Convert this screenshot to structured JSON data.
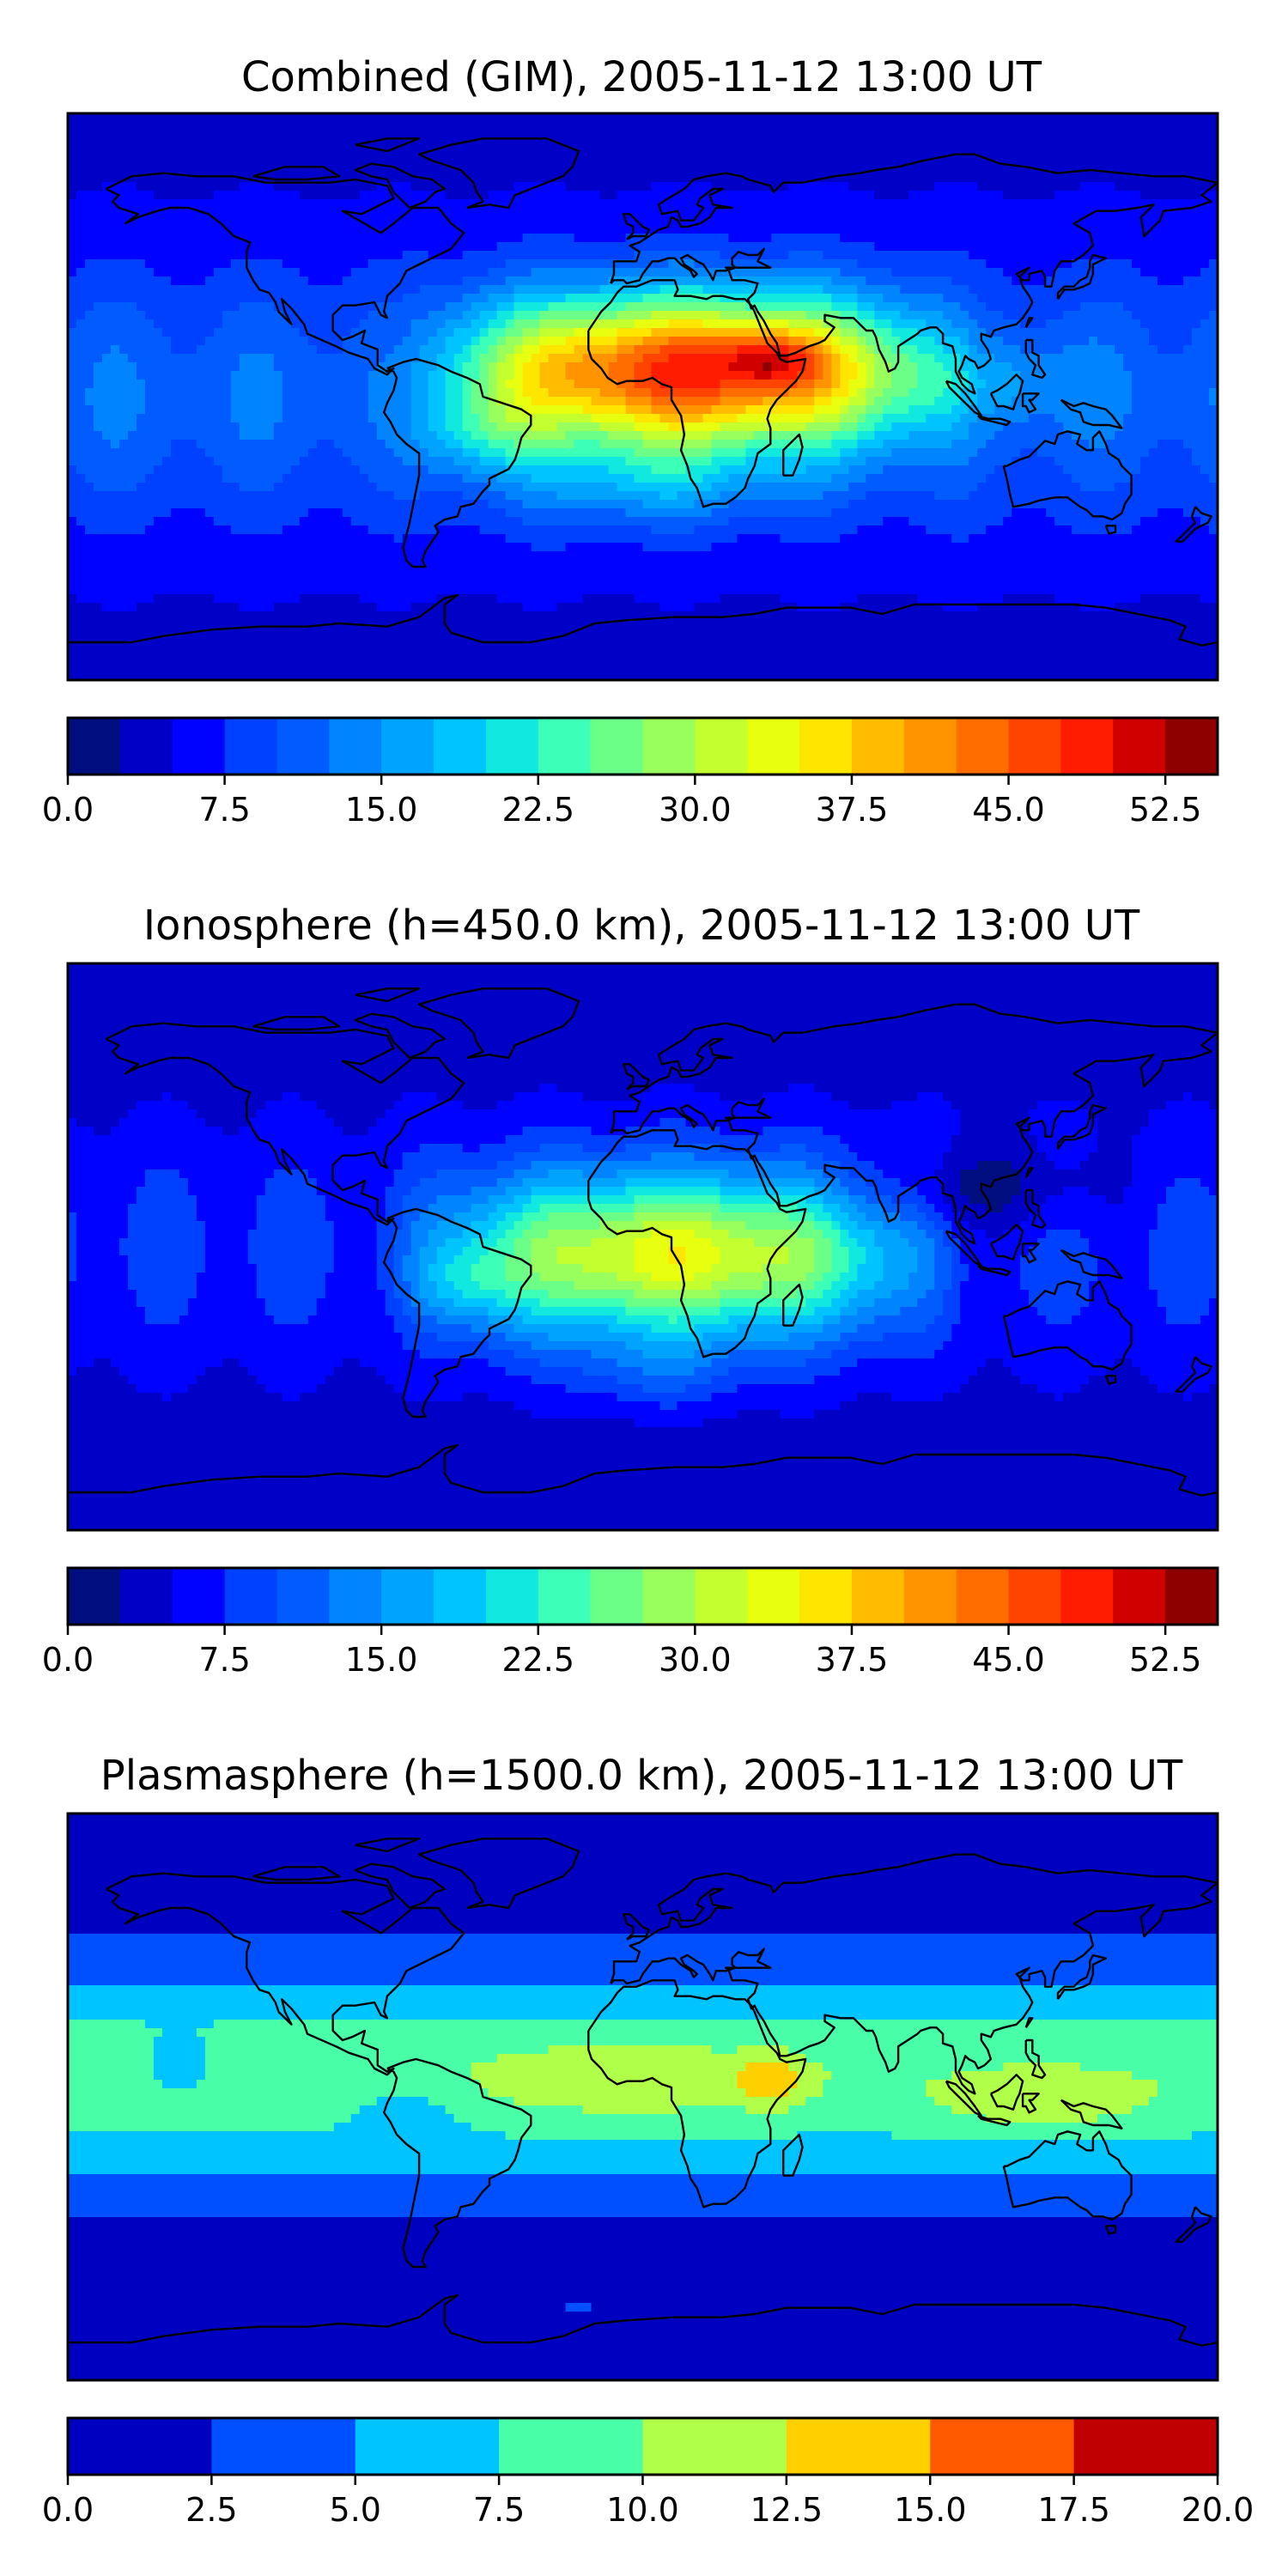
{
  "chart_data": [
    {
      "type": "heatmap",
      "title": "Combined (GIM), 2005-11-12 13:00 UT",
      "field": "combined",
      "colorbar": {
        "levels": [
          0,
          2.5,
          5,
          7.5,
          10,
          12.5,
          15,
          17.5,
          20,
          22.5,
          25,
          27.5,
          30,
          32.5,
          35,
          37.5,
          40,
          42.5,
          45,
          47.5,
          50,
          52.5,
          55
        ],
        "ticks": [
          "0.0",
          "7.5",
          "15.0",
          "22.5",
          "30.0",
          "37.5",
          "45.0",
          "52.5"
        ],
        "tick_values": [
          0,
          7.5,
          15,
          22.5,
          30,
          37.5,
          45,
          52.5
        ],
        "colors": [
          "#000e80",
          "#0000c6",
          "#0002ff",
          "#0040ff",
          "#005cff",
          "#0084ff",
          "#00a4ff",
          "#00c4ff",
          "#10e8e0",
          "#3cffb8",
          "#6cff88",
          "#98ff5c",
          "#c4ff30",
          "#e8ff10",
          "#ffe600",
          "#ffbc00",
          "#ff9400",
          "#ff6c00",
          "#ff4400",
          "#ff1c00",
          "#d00000",
          "#8e0000"
        ]
      }
    },
    {
      "type": "heatmap",
      "title": "Ionosphere  (h=450.0 km), 2005-11-12 13:00 UT",
      "field": "ionosphere",
      "colorbar": {
        "levels": [
          0,
          2.5,
          5,
          7.5,
          10,
          12.5,
          15,
          17.5,
          20,
          22.5,
          25,
          27.5,
          30,
          32.5,
          35,
          37.5,
          40,
          42.5,
          45,
          47.5,
          50,
          52.5,
          55
        ],
        "ticks": [
          "0.0",
          "7.5",
          "15.0",
          "22.5",
          "30.0",
          "37.5",
          "45.0",
          "52.5"
        ],
        "tick_values": [
          0,
          7.5,
          15,
          22.5,
          30,
          37.5,
          45,
          52.5
        ],
        "colors": [
          "#000e80",
          "#0000c6",
          "#0002ff",
          "#0040ff",
          "#005cff",
          "#0084ff",
          "#00a4ff",
          "#00c4ff",
          "#10e8e0",
          "#3cffb8",
          "#6cff88",
          "#98ff5c",
          "#c4ff30",
          "#e8ff10",
          "#ffe600",
          "#ffbc00",
          "#ff9400",
          "#ff6c00",
          "#ff4400",
          "#ff1c00",
          "#d00000",
          "#8e0000"
        ]
      }
    },
    {
      "type": "heatmap",
      "title": "Plasmasphere (h=1500.0 km), 2005-11-12 13:00 UT",
      "field": "plasmasphere",
      "colorbar": {
        "levels": [
          0,
          2.5,
          5,
          7.5,
          10,
          12.5,
          15,
          17.5,
          20
        ],
        "ticks": [
          "0.0",
          "2.5",
          "5.0",
          "7.5",
          "10.0",
          "12.5",
          "15.0",
          "17.5",
          "20.0"
        ],
        "tick_values": [
          0,
          2.5,
          5,
          7.5,
          10,
          12.5,
          15,
          17.5,
          20
        ],
        "colors": [
          "#0000c0",
          "#0050ff",
          "#00c4ff",
          "#48ffa8",
          "#b0ff48",
          "#ffd000",
          "#ff5a00",
          "#c00000"
        ]
      }
    }
  ]
}
